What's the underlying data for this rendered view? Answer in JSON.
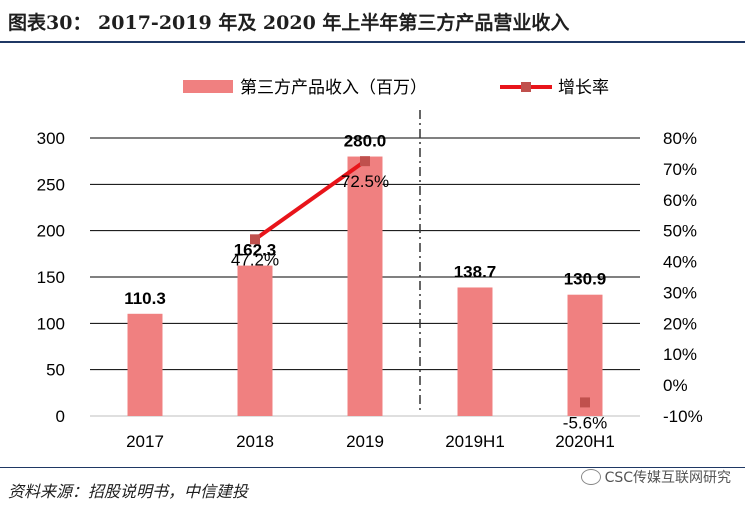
{
  "title": "图表30：   2017-2019 年及 2020 年上半年第三方产品营业收入",
  "source": "资料来源：招股说明书，中信建投",
  "watermark": "CSC传媒互联网研究",
  "colors": {
    "bar": "#f08080",
    "line": "#e8141a",
    "marker": "#c0504d",
    "divider": "#333333"
  },
  "chart_data": {
    "type": "bar",
    "categories": [
      "2017",
      "2018",
      "2019",
      "2019H1",
      "2020H1"
    ],
    "series": [
      {
        "name": "第三方产品收入（百万）",
        "type": "bar",
        "axis": "left",
        "values": [
          110.3,
          162.3,
          280.0,
          138.7,
          130.9
        ],
        "labels": [
          "110.3",
          "162.3",
          "280.0",
          "138.7",
          "130.9"
        ]
      },
      {
        "name": "增长率",
        "type": "line",
        "axis": "right",
        "values": [
          null,
          47.2,
          72.5,
          null,
          -5.6
        ],
        "labels": [
          "",
          "47.2%",
          "72.5%",
          "",
          "-5.6%"
        ]
      }
    ],
    "y_left": {
      "ylim": [
        0,
        300
      ],
      "ticks": [
        "0",
        "50",
        "100",
        "150",
        "200",
        "250",
        "300"
      ]
    },
    "y_right": {
      "ylim": [
        -10,
        80
      ],
      "ticks": [
        "-10%",
        "0%",
        "10%",
        "20%",
        "30%",
        "40%",
        "50%",
        "60%",
        "70%",
        "80%"
      ]
    },
    "grid": true,
    "legend": "top"
  }
}
